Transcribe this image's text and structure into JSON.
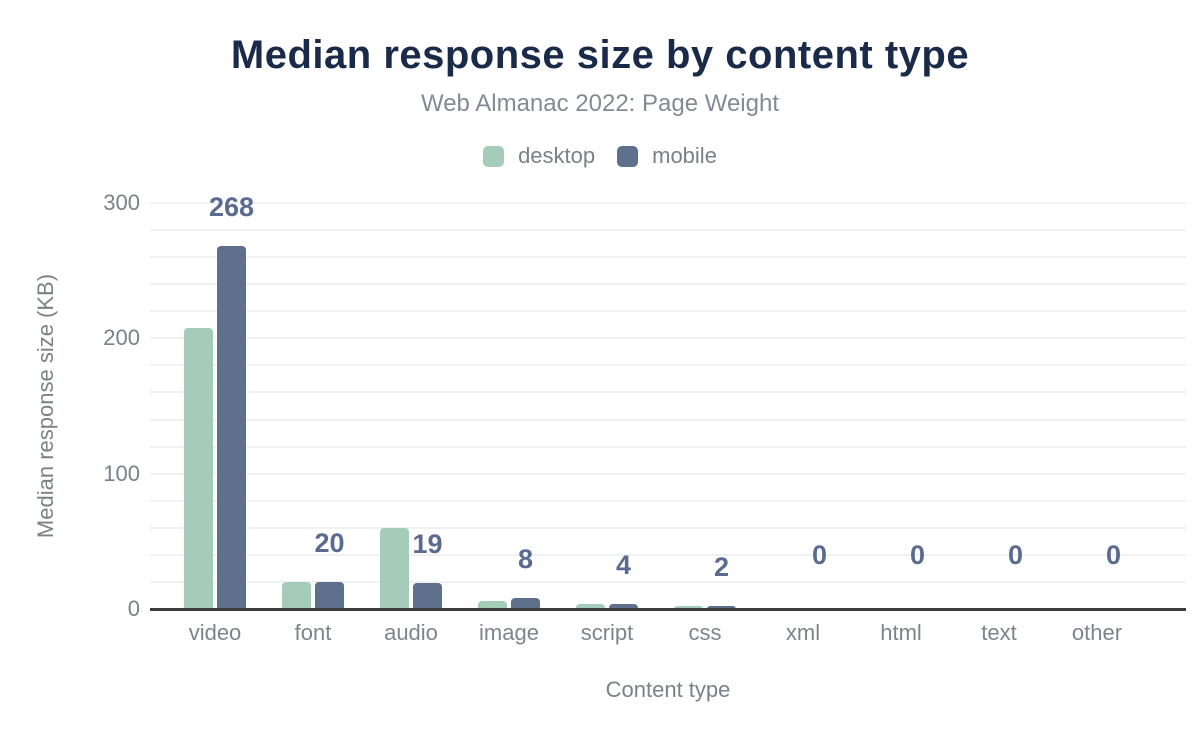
{
  "title": "Median response size by content type",
  "subtitle": "Web Almanac 2022: Page Weight",
  "legend": {
    "items": [
      {
        "label": "desktop",
        "color": "#a5ccb8"
      },
      {
        "label": "mobile",
        "color": "#5f708c"
      }
    ]
  },
  "chart_data": {
    "type": "bar",
    "categories": [
      "video",
      "font",
      "audio",
      "image",
      "script",
      "css",
      "xml",
      "html",
      "text",
      "other"
    ],
    "series": [
      {
        "name": "desktop",
        "color": "#a5ccb8",
        "values": [
          208,
          20,
          60,
          6,
          4,
          2,
          0,
          0,
          0,
          0
        ]
      },
      {
        "name": "mobile",
        "color": "#5f708c",
        "values": [
          268,
          20,
          19,
          8,
          4,
          2,
          0,
          0,
          0,
          0
        ]
      }
    ],
    "data_labels": {
      "series": "mobile",
      "values": [
        "268",
        "20",
        "19",
        "8",
        "4",
        "2",
        "0",
        "0",
        "0",
        "0"
      ],
      "color": "#5a6b8f"
    },
    "title": "Median response size by content type",
    "subtitle": "Web Almanac 2022: Page Weight",
    "xlabel": "Content type",
    "ylabel": "Median response size (KB)",
    "yticks": [
      0,
      100,
      200,
      300
    ],
    "ylim": [
      0,
      300
    ],
    "grid": true,
    "grid_interval": 20,
    "legend_position": "top"
  },
  "colors": {
    "title": "#1a2b49",
    "subtitle": "#848a94",
    "axis_text": "#7b8089",
    "axis_line": "#3d3d3d",
    "gridline": "#f0f1f3",
    "data_label": "#5a6b8f"
  }
}
